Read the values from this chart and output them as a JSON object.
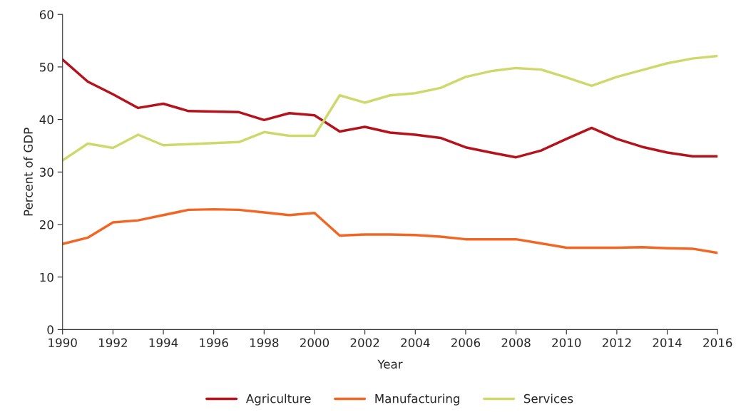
{
  "chart_data": {
    "type": "line",
    "xlabel": "Year",
    "ylabel": "Percent of GDP",
    "x": [
      1990,
      1991,
      1992,
      1993,
      1994,
      1995,
      1996,
      1997,
      1998,
      1999,
      2000,
      2001,
      2002,
      2003,
      2004,
      2005,
      2006,
      2007,
      2008,
      2009,
      2010,
      2011,
      2012,
      2013,
      2014,
      2015,
      2016
    ],
    "series": [
      {
        "name": "Agriculture",
        "color": "#b5121b",
        "values": [
          51.4,
          47.2,
          44.8,
          42.2,
          43.0,
          41.6,
          41.5,
          41.4,
          39.9,
          41.2,
          40.8,
          37.7,
          38.6,
          37.5,
          37.1,
          36.5,
          34.7,
          33.7,
          32.8,
          34.1,
          36.3,
          38.4,
          36.3,
          34.8,
          33.7,
          33.0,
          33.0
        ]
      },
      {
        "name": "Manufacturing",
        "color": "#f26522",
        "values": [
          16.3,
          17.5,
          20.4,
          20.8,
          21.8,
          22.8,
          22.9,
          22.8,
          22.3,
          21.8,
          22.2,
          17.9,
          18.1,
          18.1,
          18.0,
          17.7,
          17.2,
          17.2,
          17.2,
          16.4,
          15.6,
          15.6,
          15.6,
          15.7,
          15.5,
          15.4,
          14.6
        ]
      },
      {
        "name": "Services",
        "color": "#cfd96b",
        "values": [
          32.2,
          35.4,
          34.6,
          37.1,
          35.1,
          35.3,
          35.5,
          35.7,
          37.6,
          36.9,
          36.9,
          44.6,
          43.2,
          44.6,
          45.0,
          46.0,
          48.1,
          49.2,
          49.8,
          49.5,
          48.0,
          46.4,
          48.1,
          49.4,
          50.7,
          51.6,
          52.1
        ]
      }
    ],
    "xlim": [
      1990,
      2016
    ],
    "xticks": [
      1990,
      1992,
      1994,
      1996,
      1998,
      2000,
      2002,
      2004,
      2006,
      2008,
      2010,
      2012,
      2014,
      2016
    ],
    "ylim": [
      0,
      60
    ],
    "yticks": [
      0,
      10,
      20,
      30,
      40,
      50,
      60
    ],
    "grid": false,
    "legend": "bottom",
    "line_style": "solid",
    "marker": "none"
  }
}
